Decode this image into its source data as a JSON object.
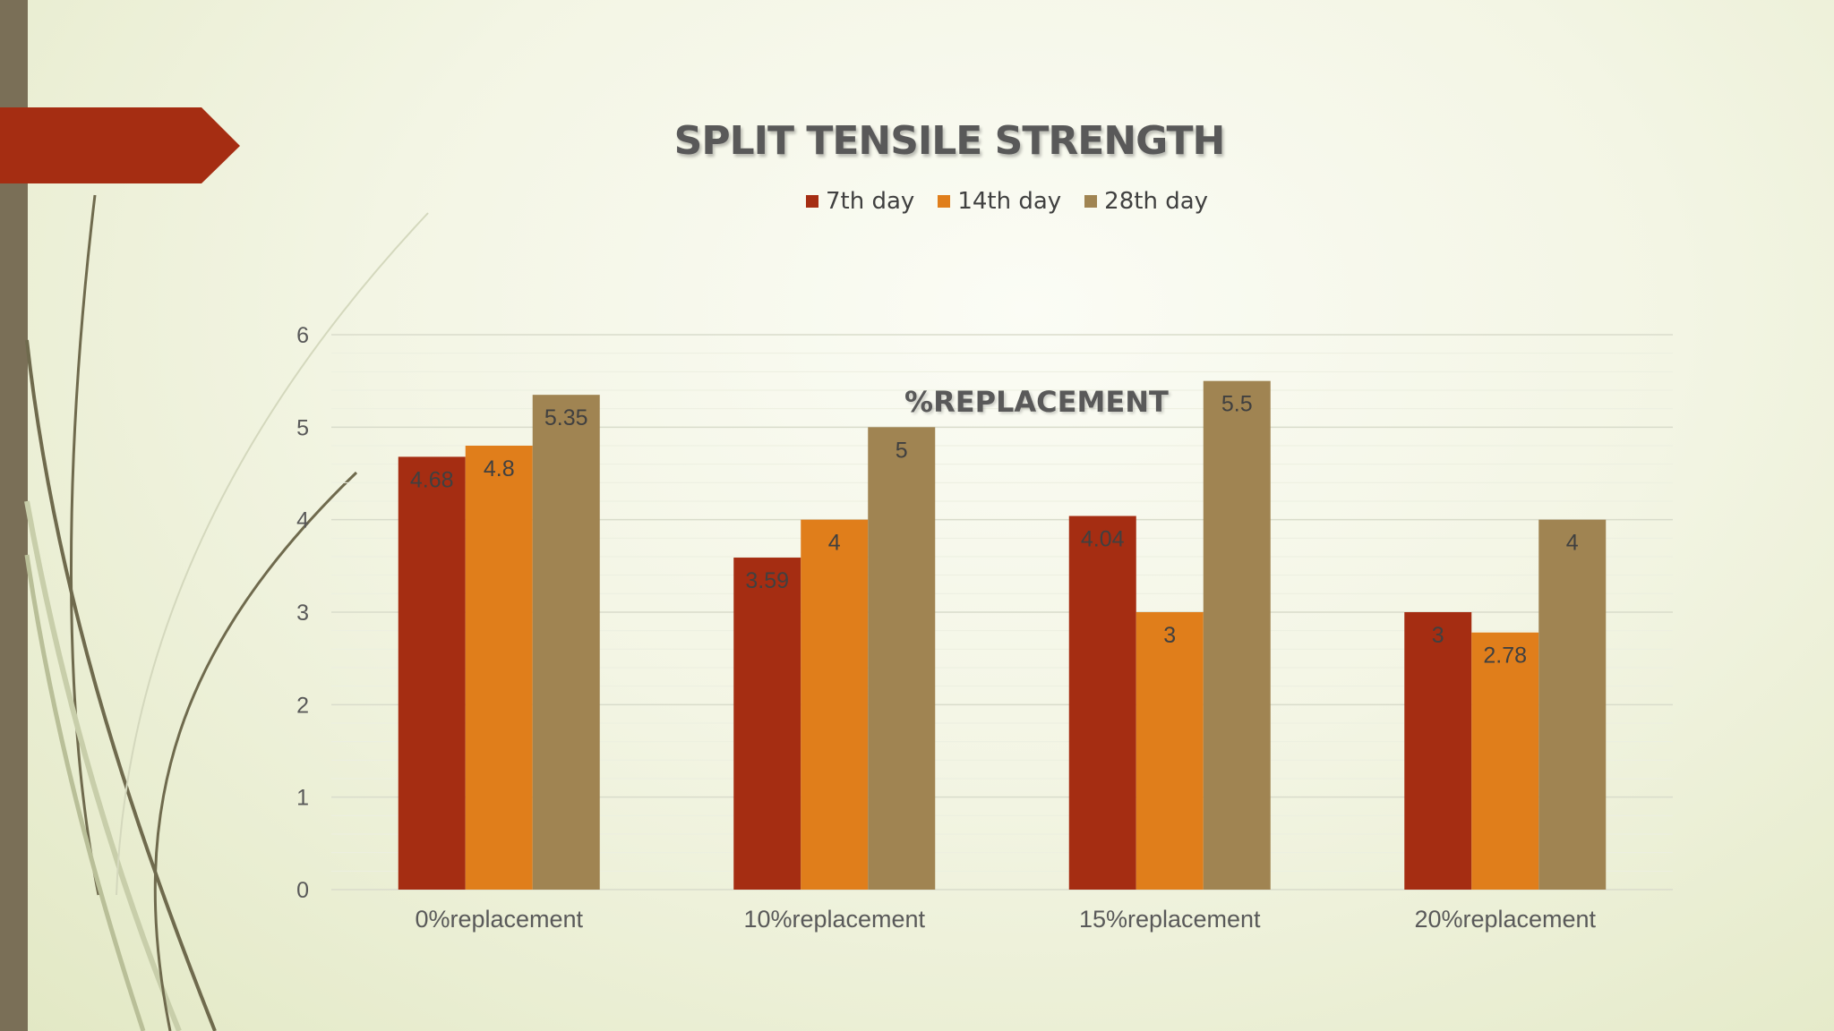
{
  "colors": {
    "series_7th": "#a52d12",
    "series_14th": "#e07e1b",
    "series_28th": "#a08452",
    "accent_banner": "#a52d12",
    "left_bar": "#7a6f57"
  },
  "chart_data": {
    "type": "bar",
    "title": "SPLIT TENSILE STRENGTH",
    "xlabel": "%REPLACEMENT",
    "ylabel": "",
    "categories": [
      "0%replacement",
      "10%replacement",
      "15%replacement",
      "20%replacement"
    ],
    "series": [
      {
        "name": "7th day",
        "values": [
          4.68,
          3.59,
          4.04,
          3
        ]
      },
      {
        "name": "14th day",
        "values": [
          4.8,
          4,
          3,
          2.78
        ]
      },
      {
        "name": "28th day",
        "values": [
          5.35,
          5,
          5.5,
          4
        ]
      }
    ],
    "ylim": [
      0,
      6
    ],
    "yticks": [
      0,
      1,
      2,
      3,
      4,
      5,
      6
    ],
    "grid": true,
    "legend_position": "top"
  }
}
